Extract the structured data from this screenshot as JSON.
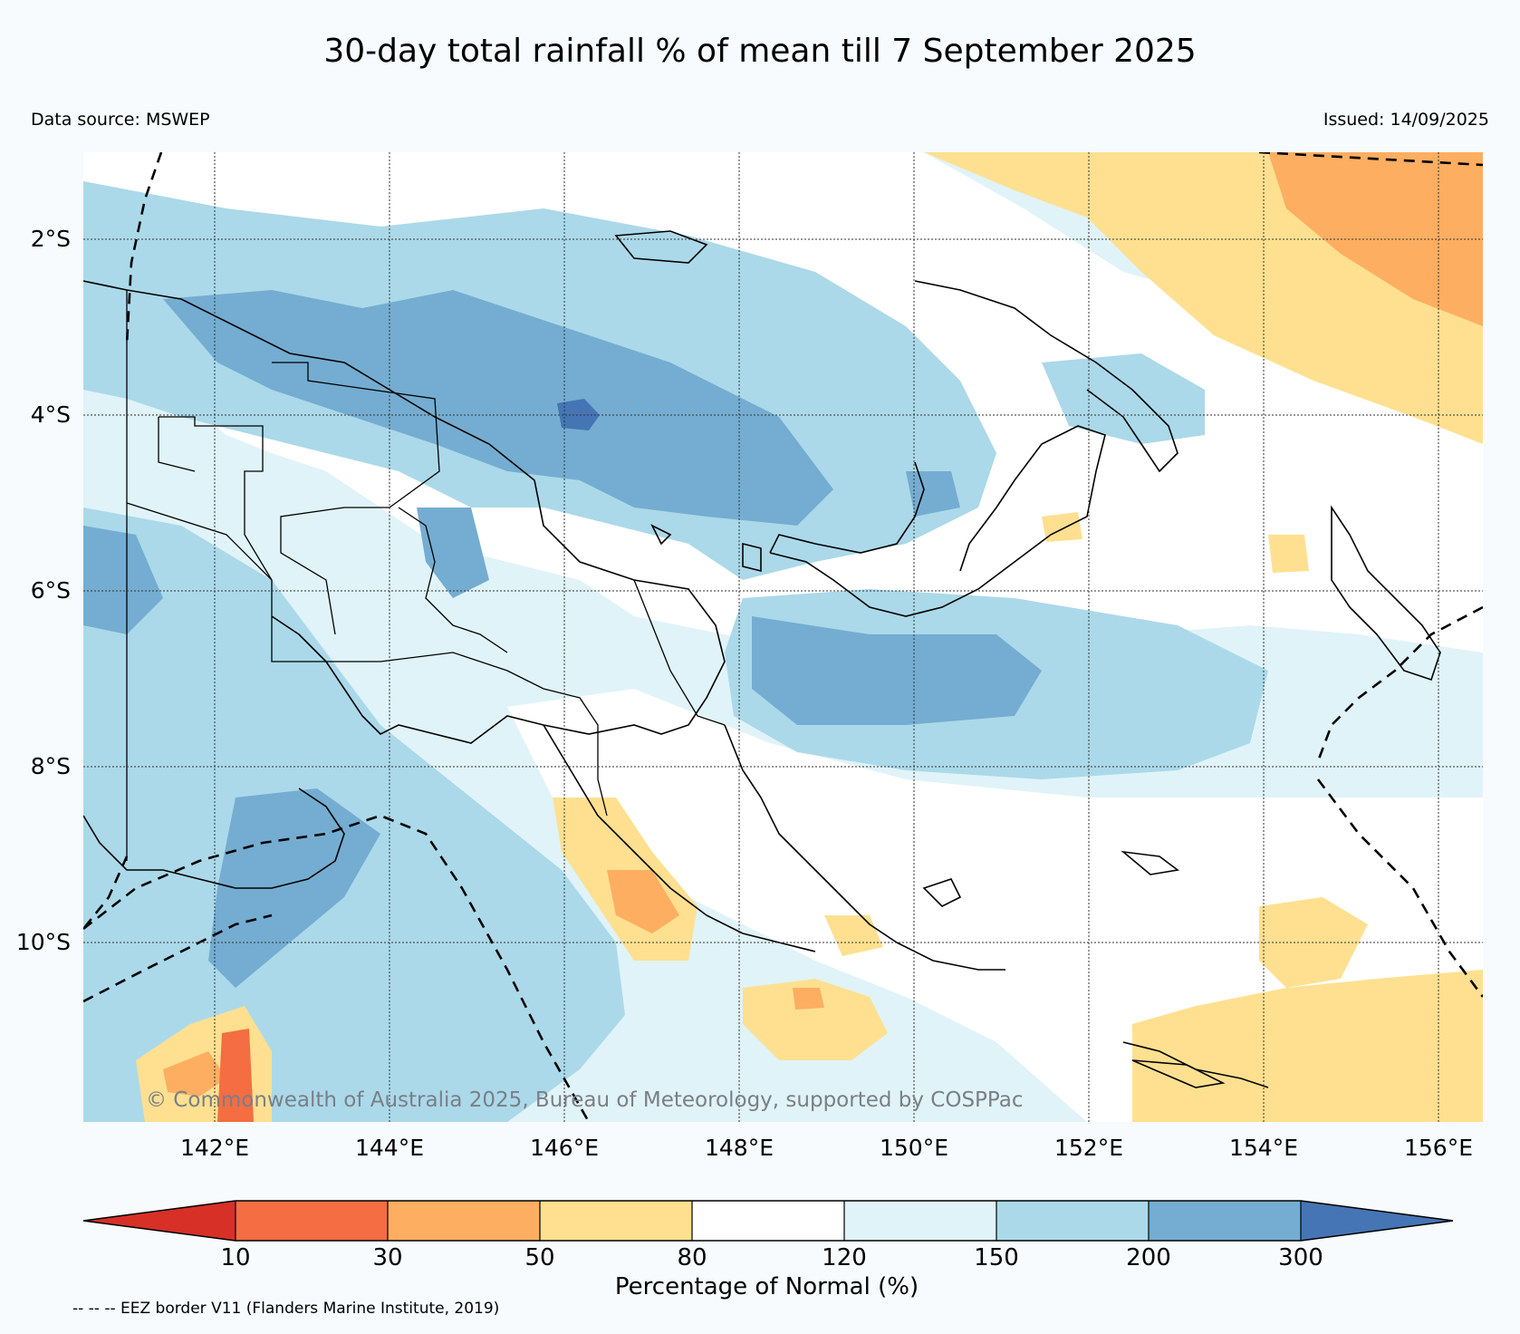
{
  "title": "30-day total rainfall % of mean till 7 September 2025",
  "data_source": "Data source: MSWEP",
  "issued": "Issued: 14/09/2025",
  "copyright": "© Commonwealth of Australia 2025, Bureau of Meteorology, supported by COSPPac",
  "latitudes": [
    "2°S",
    "4°S",
    "6°S",
    "8°S",
    "10°S"
  ],
  "longitudes": [
    "142°E",
    "144°E",
    "146°E",
    "148°E",
    "150°E",
    "152°E",
    "154°E",
    "156°E"
  ],
  "colorbar": {
    "title": "Percentage of Normal (%)",
    "ticks": [
      "10",
      "30",
      "50",
      "80",
      "120",
      "150",
      "200",
      "300"
    ],
    "colors": [
      "#d73027",
      "#f46d43",
      "#fdae61",
      "#fee090",
      "#ffffff",
      "#e0f3f8",
      "#abd9e9",
      "#74add1",
      "#4575b4"
    ]
  },
  "eez_note": "-- -- -- EEZ border V11 (Flanders Marine Institute, 2019)"
}
